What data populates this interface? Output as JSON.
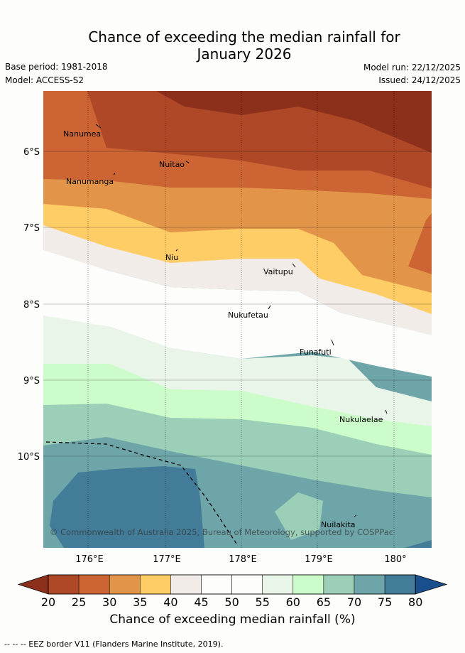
{
  "header": {
    "title_line1": "Chance of exceeding the median rainfall for",
    "title_line2": "January 2026",
    "base_period": "Base period: 1981-2018",
    "model": "Model: ACCESS-S2",
    "model_run": "Model run: 22/12/2025",
    "issued": "Issued: 24/12/2025"
  },
  "map": {
    "lat_labels": [
      "6°S",
      "7°S",
      "8°S",
      "9°S",
      "10°S"
    ],
    "lon_labels": [
      "176°E",
      "177°E",
      "178°E",
      "179°E",
      "180°"
    ],
    "places": [
      "Nanumea",
      "Nuitao",
      "Nanumanga",
      "Niu",
      "Vaitupu",
      "Nukufetau",
      "Funafuti",
      "Nukulaelae",
      "Nuilakita"
    ],
    "copyright": "© Commonwealth of Australia 2025, Bureau of Meteorology, supported by COSPPac"
  },
  "colorbar": {
    "ticks": [
      "20",
      "25",
      "30",
      "35",
      "40",
      "45",
      "50",
      "55",
      "60",
      "65",
      "70",
      "75",
      "80"
    ],
    "colors": [
      "#8c2f1b",
      "#ae4826",
      "#cc6434",
      "#e29548",
      "#ffcd66",
      "#f1ece8",
      "#fdfefc",
      "#fdfefc",
      "#eaf5e9",
      "#cbfcc9",
      "#9ccfb8",
      "#6ea5a9",
      "#437c98",
      "#1a4f8d"
    ],
    "label": "Chance of exceeding median rainfall (%)"
  },
  "legend": {
    "eez": "-- -- -- EEZ border V11 (Flanders Marine Institute, 2019)."
  }
}
